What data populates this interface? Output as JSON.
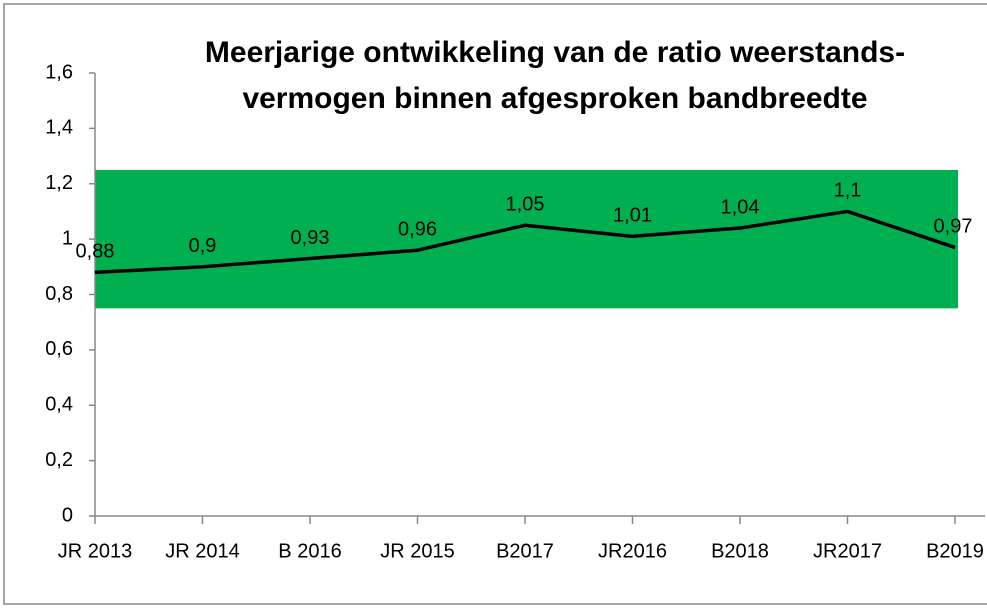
{
  "chart_data": {
    "type": "line",
    "title": [
      "Meerjarige ontwikkeling van de ratio weerstands-",
      "vermogen binnen afgesproken bandbreedte"
    ],
    "categories": [
      "JR 2013",
      "JR 2014",
      "B 2016",
      "JR 2015",
      "B2017",
      "JR2016",
      "B2018",
      "JR2017",
      "B2019"
    ],
    "values": [
      0.88,
      0.9,
      0.93,
      0.96,
      1.05,
      1.01,
      1.04,
      1.1,
      0.97
    ],
    "value_labels": [
      "0,88",
      "0,9",
      "0,93",
      "0,96",
      "1,05",
      "1,01",
      "1,04",
      "1,1",
      "0,97"
    ],
    "color": "#000000",
    "band": [
      0.75,
      1.25
    ],
    "band_color": "#00b050",
    "ylim": [
      0,
      1.6
    ],
    "yticks": [
      0,
      {
        "value": 0.2,
        "label": "0,2"
      },
      {
        "value": 0.4,
        "label": "0,4"
      },
      {
        "value": 0.6,
        "label": "0,6"
      },
      {
        "value": 0.8,
        "label": "0,8"
      },
      1,
      {
        "value": 1.2,
        "label": "1,2"
      },
      {
        "value": 1.4,
        "label": "1,4"
      },
      {
        "value": 1.6,
        "label": "1,6"
      }
    ]
  }
}
